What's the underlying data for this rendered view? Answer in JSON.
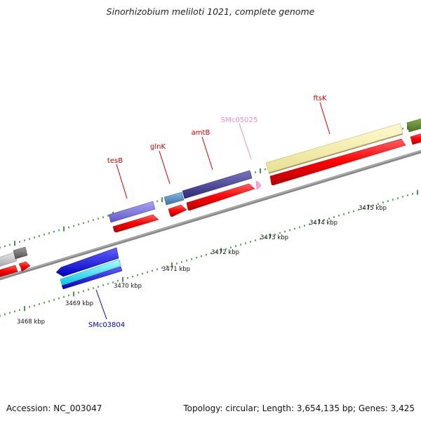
{
  "header": {
    "title": "Sinorhizobium meliloti 1021, complete genome"
  },
  "footer": {
    "accession": "Accession: NC_003047",
    "summary": "Topology: circular; Length: 3,654,135 bp; Genes: 3,425"
  },
  "ruler": {
    "labels": [
      "3468 kbp",
      "3469 kbp",
      "3470 kbp",
      "3471 kbp",
      "3472 kbp",
      "3473 kbp",
      "3474 kbp",
      "3475 kbp"
    ]
  },
  "genes": {
    "tesB": {
      "label": "tesB",
      "color": "#cc0000"
    },
    "glnK": {
      "label": "glnK",
      "color": "#cc0000"
    },
    "amtB": {
      "label": "amtB",
      "color": "#cc0000"
    },
    "SMc05025": {
      "label": "SMc05025",
      "color": "#f08ccf"
    },
    "ftsK": {
      "label": "ftsK",
      "color": "#cc0000"
    },
    "SMc03804": {
      "label": "SMc03804",
      "color": "#0000cc"
    }
  },
  "colors": {
    "backbone": "#8a8a8a",
    "cds": "#ff0000",
    "tick": "#1e7a1e"
  }
}
